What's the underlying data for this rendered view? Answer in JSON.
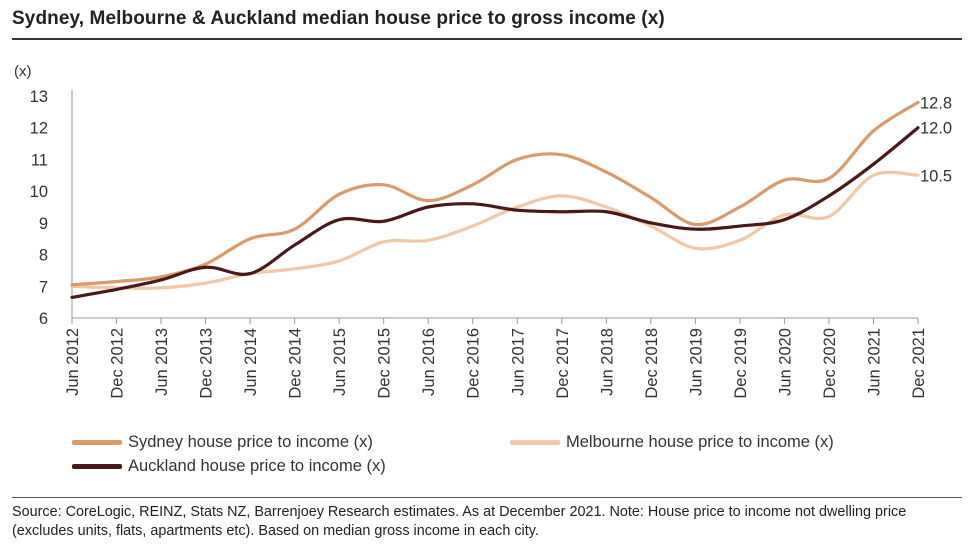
{
  "title": "Sydney, Melbourne & Auckland median house price to gross income (x)",
  "source": "Source: CoreLogic, REINZ, Stats NZ, Barrenjoey Research estimates. As at December 2021. Note: House price to income not dwelling price (excludes units, flats, apartments etc). Based on median gross income in each city.",
  "chart_data": {
    "type": "line",
    "title": "Sydney, Melbourne & Auckland median house price to gross income (x)",
    "ylabel": "(x)",
    "xlabel": "",
    "ylim": [
      6,
      13
    ],
    "yticks": [
      "6",
      "7",
      "8",
      "9",
      "10",
      "11",
      "12",
      "13"
    ],
    "categories": [
      "Jun 2012",
      "Dec 2012",
      "Jun 2013",
      "Dec 2013",
      "Jun 2014",
      "Dec 2014",
      "Jun 2015",
      "Dec 2015",
      "Jun 2016",
      "Dec 2016",
      "Jun 2017",
      "Dec 2017",
      "Jun 2018",
      "Dec 2018",
      "Jun 2019",
      "Dec 2019",
      "Jun 2020",
      "Dec 2020",
      "Jun 2021",
      "Dec 2021"
    ],
    "series": [
      {
        "name": "Sydney house price to income (x)",
        "color": "#D99A6C",
        "end_label": "12.8",
        "values": [
          7.05,
          7.15,
          7.3,
          7.7,
          8.5,
          8.8,
          9.9,
          10.2,
          9.7,
          10.2,
          11.0,
          11.15,
          10.6,
          9.8,
          8.95,
          9.5,
          10.35,
          10.4,
          11.9,
          12.8
        ]
      },
      {
        "name": "Melbourne house price to income (x)",
        "color": "#F0C8A6",
        "end_label": "10.5",
        "values": [
          7.0,
          6.95,
          6.95,
          7.1,
          7.4,
          7.55,
          7.8,
          8.4,
          8.45,
          8.9,
          9.5,
          9.85,
          9.5,
          8.9,
          8.2,
          8.45,
          9.25,
          9.2,
          10.5,
          10.5
        ]
      },
      {
        "name": "Auckland house price to income (x)",
        "color": "#4A1818",
        "end_label": "12.0",
        "values": [
          6.65,
          6.9,
          7.2,
          7.6,
          7.4,
          8.3,
          9.1,
          9.05,
          9.5,
          9.6,
          9.4,
          9.35,
          9.35,
          9.0,
          8.8,
          8.9,
          9.1,
          9.85,
          10.85,
          12.0
        ]
      }
    ],
    "legend": [
      {
        "label": "Sydney house price to income (x)",
        "color": "#D99A6C"
      },
      {
        "label": "Melbourne house price to income (x)",
        "color": "#F0C8A6"
      },
      {
        "label": "Auckland house price to income (x)",
        "color": "#4A1818"
      }
    ]
  }
}
